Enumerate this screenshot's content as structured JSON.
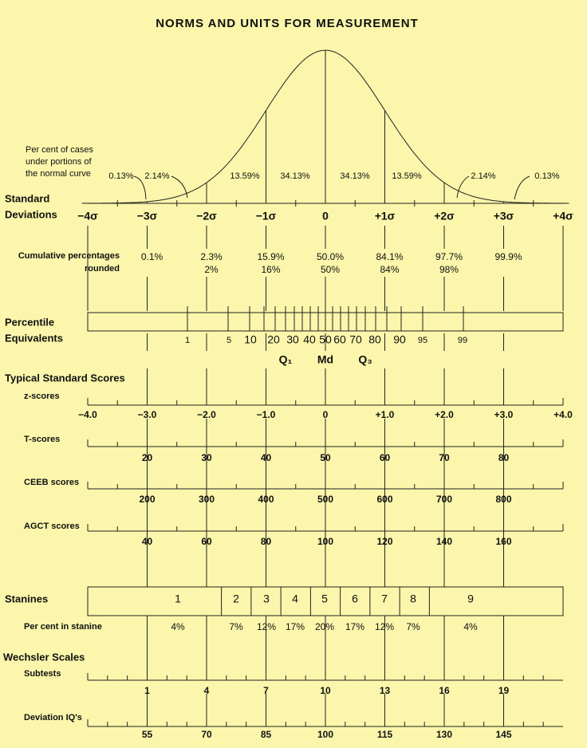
{
  "title": "NORMS AND UNITS FOR MEASUREMENT",
  "curve": {
    "caption": [
      "Per cent of cases",
      "under portions of",
      "the normal curve"
    ],
    "percents": [
      "0.13%",
      "2.14%",
      "13.59%",
      "34.13%",
      "34.13%",
      "13.59%",
      "2.14%",
      "0.13%"
    ]
  },
  "standard_deviations": {
    "label": [
      "Standard",
      "Deviations"
    ],
    "ticks": [
      "−4σ",
      "−3σ",
      "−2σ",
      "−1σ",
      "0",
      "+1σ",
      "+2σ",
      "+3σ",
      "+4σ"
    ]
  },
  "cumulative": {
    "label": [
      "Cumulative percentages",
      "rounded"
    ],
    "values": [
      "0.1%",
      "2.3%",
      "15.9%",
      "50.0%",
      "84.1%",
      "97.7%",
      "99.9%"
    ],
    "rounded": [
      "2%",
      "16%",
      "50%",
      "84%",
      "98%"
    ]
  },
  "percentile": {
    "label": [
      "Percentile",
      "Equivalents"
    ],
    "ticks": [
      "1",
      "5",
      "10",
      "20",
      "30",
      "40",
      "50",
      "60",
      "70",
      "80",
      "90",
      "95",
      "99"
    ],
    "quartiles": [
      "Q₁",
      "Md",
      "Q₃"
    ]
  },
  "typical_title": "Typical Standard Scores",
  "z_scores": {
    "label": "z-scores",
    "ticks": [
      "−4.0",
      "−3.0",
      "−2.0",
      "−1.0",
      "0",
      "+1.0",
      "+2.0",
      "+3.0",
      "+4.0"
    ]
  },
  "t_scores": {
    "label": "T-scores",
    "ticks": [
      "20",
      "30",
      "40",
      "50",
      "60",
      "70",
      "80"
    ]
  },
  "ceeb_scores": {
    "label": "CEEB scores",
    "ticks": [
      "200",
      "300",
      "400",
      "500",
      "600",
      "700",
      "800"
    ]
  },
  "agct_scores": {
    "label": "AGCT scores",
    "ticks": [
      "40",
      "60",
      "80",
      "100",
      "120",
      "140",
      "160"
    ]
  },
  "stanines": {
    "label": "Stanines",
    "numbers": [
      "1",
      "2",
      "3",
      "4",
      "5",
      "6",
      "7",
      "8",
      "9"
    ],
    "percent_label": "Per cent in stanine",
    "percents": [
      "4%",
      "7%",
      "12%",
      "17%",
      "20%",
      "17%",
      "12%",
      "7%",
      "4%"
    ]
  },
  "wechsler": {
    "title": "Wechsler Scales",
    "subtests": {
      "label": "Subtests",
      "ticks": [
        "1",
        "4",
        "7",
        "10",
        "13",
        "16",
        "19"
      ]
    },
    "deviation_iq": {
      "label": "Deviation IQ's",
      "ticks": [
        "55",
        "70",
        "85",
        "100",
        "115",
        "130",
        "145"
      ]
    }
  }
}
